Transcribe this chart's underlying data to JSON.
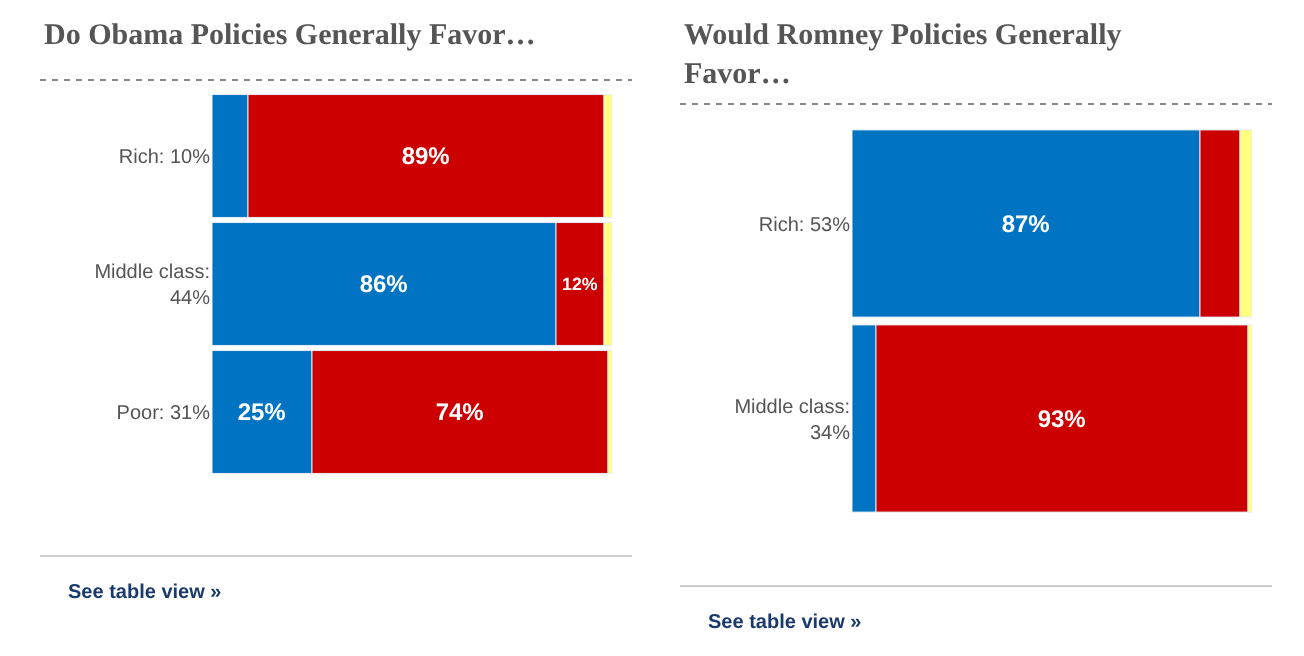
{
  "chart_data": [
    {
      "type": "bar",
      "orientation": "horizontal",
      "stacked": true,
      "title": "Do Obama Policies Generally Favor…",
      "categories": [
        "Rich: 10%",
        "Middle class:\n44%",
        "Poor: 31%"
      ],
      "series": [
        {
          "color": "#0073c2",
          "values": [
            9,
            86,
            25
          ],
          "value_labels": [
            null,
            "86%",
            "25%"
          ]
        },
        {
          "color": "#cc0000",
          "values": [
            89,
            12,
            74
          ],
          "value_labels": [
            "89%",
            "12%",
            "74%"
          ]
        },
        {
          "color": "#ffff80",
          "values": [
            2,
            2,
            1
          ],
          "value_labels": [
            null,
            null,
            null
          ]
        }
      ],
      "xlim": [
        0,
        100
      ],
      "tick_labels": "y",
      "annotations": [
        "See table view »"
      ]
    },
    {
      "type": "bar",
      "orientation": "horizontal",
      "stacked": true,
      "title": "Would Romney Policies Generally\nFavor…",
      "categories": [
        "Rich: 53%",
        "Middle class:\n34%"
      ],
      "series": [
        {
          "color": "#0073c2",
          "values": [
            87,
            6
          ],
          "value_labels": [
            "87%",
            null
          ]
        },
        {
          "color": "#cc0000",
          "values": [
            10,
            93
          ],
          "value_labels": [
            null,
            "93%"
          ]
        },
        {
          "color": "#ffff80",
          "values": [
            3,
            1
          ],
          "value_labels": [
            null,
            null
          ]
        }
      ],
      "xlim": [
        0,
        100
      ],
      "tick_labels": "y",
      "annotations": [
        "See table view »"
      ]
    }
  ]
}
